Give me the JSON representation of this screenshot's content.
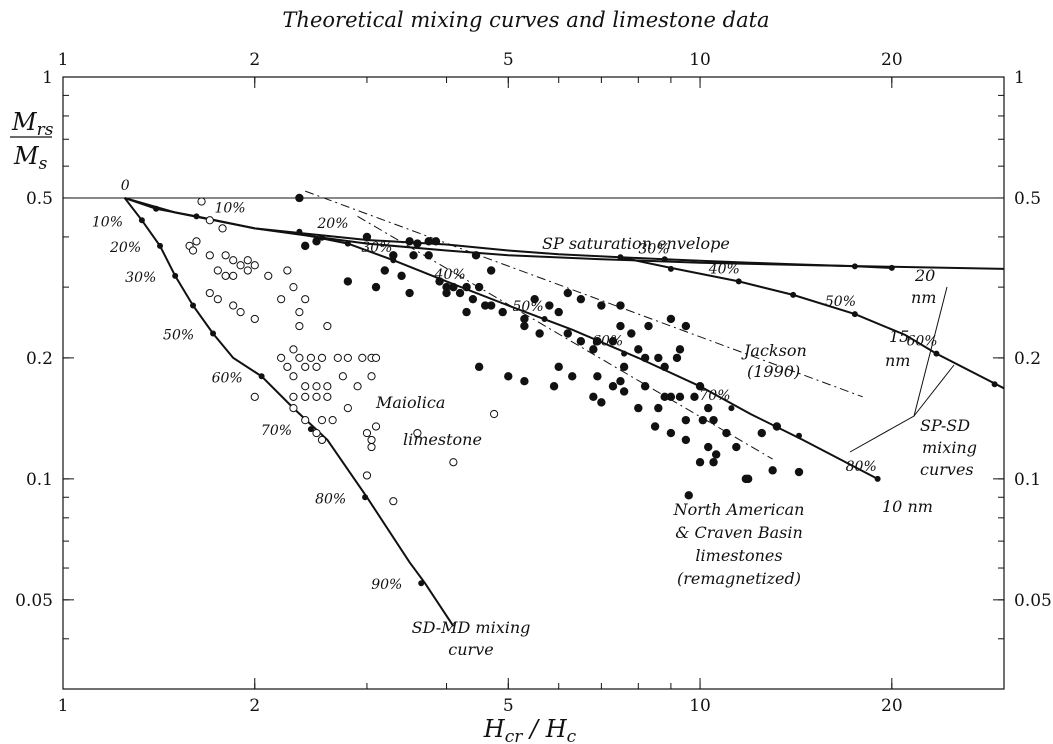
{
  "chart_data": {
    "type": "scatter",
    "title": "Theoretical mixing curves and limestone data",
    "x_scale": "log",
    "y_scale": "log",
    "xlim": [
      1,
      30
    ],
    "ylim": [
      0.03,
      1
    ],
    "grid": false,
    "x_ticks": [
      {
        "value": 1,
        "label": "1"
      },
      {
        "value": 2,
        "label": "2"
      },
      {
        "value": 5,
        "label": "5"
      },
      {
        "value": 10,
        "label": "10"
      },
      {
        "value": 20,
        "label": "20"
      }
    ],
    "y_ticks": [
      {
        "value": 1,
        "label": "1"
      },
      {
        "value": 0.5,
        "label": "0.5"
      },
      {
        "value": 0.2,
        "label": "0.2"
      },
      {
        "value": 0.1,
        "label": "0.1"
      },
      {
        "value": 0.05,
        "label": "0.05"
      }
    ],
    "xlabel": {
      "main": "H",
      "sub": "cr",
      "sep": " / ",
      "main2": "H",
      "sub2": "c"
    },
    "ylabel": {
      "num_main": "M",
      "num_sub": "rs",
      "den_main": "M",
      "den_sub": "s"
    },
    "reference_lines": [
      {
        "y": 0.5
      }
    ],
    "curves": [
      {
        "id": "sd-md",
        "x": [
          1.25,
          1.33,
          1.42,
          1.5,
          1.6,
          1.72,
          1.85,
          2.05,
          2.3,
          2.6,
          3.0,
          3.5,
          3.7,
          4.1
        ],
        "y": [
          0.5,
          0.44,
          0.38,
          0.32,
          0.27,
          0.23,
          0.2,
          0.18,
          0.15,
          0.125,
          0.09,
          0.062,
          0.055,
          0.043
        ],
        "markers": [
          {
            "x": 1.33,
            "y": 0.44,
            "label": "10%"
          },
          {
            "x": 1.42,
            "y": 0.38,
            "label": "20%"
          },
          {
            "x": 1.5,
            "y": 0.32,
            "label": "30%"
          },
          {
            "x": 1.6,
            "y": 0.27,
            "label": ""
          },
          {
            "x": 1.72,
            "y": 0.23,
            "label": "50%"
          },
          {
            "x": 2.05,
            "y": 0.18,
            "label": "60%"
          },
          {
            "x": 2.45,
            "y": 0.133,
            "label": "70%"
          },
          {
            "x": 2.98,
            "y": 0.09,
            "label": "80%"
          },
          {
            "x": 3.65,
            "y": 0.055,
            "label": "90%"
          }
        ],
        "origin_label": "0"
      },
      {
        "id": "sp-envelope",
        "x": [
          1.25,
          1.5,
          2,
          2.5,
          3,
          4,
          5,
          7,
          10,
          15,
          20,
          30
        ],
        "y": [
          0.5,
          0.46,
          0.42,
          0.4,
          0.385,
          0.37,
          0.36,
          0.352,
          0.345,
          0.34,
          0.337,
          0.333
        ],
        "markers": []
      },
      {
        "id": "sp-sd-20nm",
        "x": [
          1.25,
          1.4,
          1.62,
          2.0,
          2.5,
          3.0,
          4.0,
          5.0,
          6.0,
          7.5,
          8.8,
          10.0,
          12.0,
          14.0,
          17.5,
          20.0
        ],
        "y": [
          0.5,
          0.47,
          0.45,
          0.42,
          0.405,
          0.393,
          0.383,
          0.37,
          0.362,
          0.356,
          0.352,
          0.349,
          0.345,
          0.342,
          0.338,
          0.335
        ],
        "markers": [
          {
            "x": 1.4,
            "y": 0.47,
            "label": ""
          },
          {
            "x": 1.62,
            "y": 0.45,
            "label": "10%"
          },
          {
            "x": 2.35,
            "y": 0.412,
            "label": "20%"
          },
          {
            "x": 7.5,
            "y": 0.356,
            "label": "30%"
          },
          {
            "x": 8.8,
            "y": 0.352,
            "label": ""
          },
          {
            "x": 17.5,
            "y": 0.338,
            "label": ""
          },
          {
            "x": 20.0,
            "y": 0.335,
            "label": ""
          }
        ]
      },
      {
        "id": "sp-sd-15nm",
        "x": [
          7.5,
          9.0,
          11.5,
          14.0,
          17.5,
          21.0,
          23.5,
          30.0
        ],
        "y": [
          0.356,
          0.335,
          0.31,
          0.287,
          0.257,
          0.228,
          0.205,
          0.168
        ],
        "markers": [
          {
            "x": 9.0,
            "y": 0.333,
            "label": ""
          },
          {
            "x": 11.5,
            "y": 0.31,
            "label": "40%"
          },
          {
            "x": 14.0,
            "y": 0.287,
            "label": ""
          },
          {
            "x": 17.5,
            "y": 0.257,
            "label": "50%"
          },
          {
            "x": 23.5,
            "y": 0.205,
            "label": "60%"
          },
          {
            "x": 29.0,
            "y": 0.172,
            "label": ""
          }
        ]
      },
      {
        "id": "sp-sd-10nm",
        "x": [
          2.3,
          2.8,
          3.3,
          4.0,
          5.0,
          6.3,
          8.0,
          10.0,
          12.0,
          14.5,
          19.0
        ],
        "y": [
          0.41,
          0.385,
          0.35,
          0.31,
          0.27,
          0.235,
          0.2,
          0.17,
          0.145,
          0.125,
          0.1
        ],
        "markers": [
          {
            "x": 2.55,
            "y": 0.398,
            "label": ""
          },
          {
            "x": 2.8,
            "y": 0.385,
            "label": ""
          },
          {
            "x": 3.3,
            "y": 0.35,
            "label": "30%"
          },
          {
            "x": 4.3,
            "y": 0.3,
            "label": "40%"
          },
          {
            "x": 5.7,
            "y": 0.25,
            "label": "50%"
          },
          {
            "x": 7.6,
            "y": 0.205,
            "label": "60%"
          },
          {
            "x": 11.2,
            "y": 0.15,
            "label": "70%"
          },
          {
            "x": 14.3,
            "y": 0.128,
            "label": ""
          },
          {
            "x": 19.0,
            "y": 0.1,
            "label": "80%"
          }
        ]
      }
    ],
    "dashdot_lines": [
      {
        "id": "jackson-1",
        "x": [
          2.4,
          18.0
        ],
        "y": [
          0.52,
          0.16
        ]
      },
      {
        "id": "jackson-2",
        "x": [
          2.9,
          13.0
        ],
        "y": [
          0.45,
          0.112
        ]
      }
    ],
    "series": [
      {
        "name": "Maiolica limestone",
        "marker": "open-circle",
        "points": [
          [
            1.65,
            0.49
          ],
          [
            1.7,
            0.44
          ],
          [
            1.78,
            0.42
          ],
          [
            1.62,
            0.39
          ],
          [
            1.58,
            0.38
          ],
          [
            1.6,
            0.37
          ],
          [
            1.7,
            0.36
          ],
          [
            1.8,
            0.36
          ],
          [
            1.85,
            0.35
          ],
          [
            1.9,
            0.34
          ],
          [
            1.95,
            0.35
          ],
          [
            2.0,
            0.34
          ],
          [
            1.75,
            0.33
          ],
          [
            1.8,
            0.32
          ],
          [
            1.85,
            0.32
          ],
          [
            1.95,
            0.33
          ],
          [
            2.1,
            0.32
          ],
          [
            2.25,
            0.33
          ],
          [
            2.3,
            0.3
          ],
          [
            1.7,
            0.29
          ],
          [
            1.75,
            0.28
          ],
          [
            1.85,
            0.27
          ],
          [
            1.9,
            0.26
          ],
          [
            2.0,
            0.25
          ],
          [
            2.2,
            0.28
          ],
          [
            2.35,
            0.26
          ],
          [
            2.4,
            0.28
          ],
          [
            2.35,
            0.24
          ],
          [
            2.6,
            0.24
          ],
          [
            2.2,
            0.2
          ],
          [
            2.25,
            0.19
          ],
          [
            2.3,
            0.21
          ],
          [
            2.35,
            0.2
          ],
          [
            2.4,
            0.19
          ],
          [
            2.45,
            0.2
          ],
          [
            2.5,
            0.19
          ],
          [
            2.55,
            0.2
          ],
          [
            2.7,
            0.2
          ],
          [
            2.8,
            0.2
          ],
          [
            2.95,
            0.2
          ],
          [
            3.05,
            0.2
          ],
          [
            3.1,
            0.2
          ],
          [
            2.3,
            0.18
          ],
          [
            2.4,
            0.17
          ],
          [
            2.5,
            0.17
          ],
          [
            2.6,
            0.17
          ],
          [
            2.75,
            0.18
          ],
          [
            2.9,
            0.17
          ],
          [
            3.05,
            0.18
          ],
          [
            2.3,
            0.16
          ],
          [
            2.4,
            0.16
          ],
          [
            2.5,
            0.16
          ],
          [
            2.6,
            0.16
          ],
          [
            2.8,
            0.15
          ],
          [
            2.3,
            0.15
          ],
          [
            2.4,
            0.14
          ],
          [
            2.55,
            0.14
          ],
          [
            2.65,
            0.14
          ],
          [
            2.5,
            0.13
          ],
          [
            2.55,
            0.125
          ],
          [
            3.0,
            0.13
          ],
          [
            3.05,
            0.125
          ],
          [
            3.1,
            0.135
          ],
          [
            3.05,
            0.12
          ],
          [
            3.6,
            0.13
          ],
          [
            3.0,
            0.102
          ],
          [
            3.3,
            0.088
          ],
          [
            4.1,
            0.11
          ],
          [
            4.75,
            0.145
          ],
          [
            2.0,
            0.16
          ]
        ]
      },
      {
        "name": "North American & Craven Basin limestones (remagnetized)",
        "marker": "filled-circle",
        "points": [
          [
            2.35,
            0.5
          ],
          [
            2.4,
            0.38
          ],
          [
            2.5,
            0.39
          ],
          [
            3.0,
            0.4
          ],
          [
            3.5,
            0.39
          ],
          [
            3.6,
            0.385
          ],
          [
            3.75,
            0.39
          ],
          [
            3.85,
            0.39
          ],
          [
            3.3,
            0.36
          ],
          [
            3.55,
            0.36
          ],
          [
            3.75,
            0.36
          ],
          [
            4.45,
            0.36
          ],
          [
            4.7,
            0.33
          ],
          [
            3.2,
            0.33
          ],
          [
            3.4,
            0.32
          ],
          [
            3.9,
            0.31
          ],
          [
            4.0,
            0.3
          ],
          [
            4.1,
            0.3
          ],
          [
            4.3,
            0.3
          ],
          [
            4.5,
            0.3
          ],
          [
            2.8,
            0.31
          ],
          [
            3.1,
            0.3
          ],
          [
            3.5,
            0.29
          ],
          [
            4.0,
            0.29
          ],
          [
            4.2,
            0.29
          ],
          [
            4.4,
            0.28
          ],
          [
            4.7,
            0.27
          ],
          [
            4.3,
            0.26
          ],
          [
            4.6,
            0.27
          ],
          [
            4.9,
            0.26
          ],
          [
            5.3,
            0.25
          ],
          [
            5.5,
            0.28
          ],
          [
            5.8,
            0.27
          ],
          [
            6.0,
            0.26
          ],
          [
            6.2,
            0.29
          ],
          [
            6.5,
            0.28
          ],
          [
            7.0,
            0.27
          ],
          [
            7.5,
            0.27
          ],
          [
            5.3,
            0.24
          ],
          [
            5.6,
            0.23
          ],
          [
            6.2,
            0.23
          ],
          [
            6.5,
            0.22
          ],
          [
            6.8,
            0.21
          ],
          [
            7.5,
            0.24
          ],
          [
            7.8,
            0.23
          ],
          [
            8.3,
            0.24
          ],
          [
            9.0,
            0.25
          ],
          [
            9.5,
            0.24
          ],
          [
            6.9,
            0.22
          ],
          [
            7.3,
            0.22
          ],
          [
            8.0,
            0.21
          ],
          [
            8.6,
            0.2
          ],
          [
            9.2,
            0.2
          ],
          [
            7.6,
            0.19
          ],
          [
            8.2,
            0.2
          ],
          [
            8.8,
            0.19
          ],
          [
            9.3,
            0.21
          ],
          [
            4.5,
            0.19
          ],
          [
            5.0,
            0.18
          ],
          [
            6.0,
            0.19
          ],
          [
            6.3,
            0.18
          ],
          [
            6.9,
            0.18
          ],
          [
            7.3,
            0.17
          ],
          [
            7.5,
            0.175
          ],
          [
            8.2,
            0.17
          ],
          [
            8.8,
            0.16
          ],
          [
            9.3,
            0.16
          ],
          [
            10.0,
            0.17
          ],
          [
            5.3,
            0.175
          ],
          [
            5.9,
            0.17
          ],
          [
            6.8,
            0.16
          ],
          [
            7.6,
            0.165
          ],
          [
            8.0,
            0.15
          ],
          [
            8.6,
            0.15
          ],
          [
            9.0,
            0.16
          ],
          [
            9.8,
            0.16
          ],
          [
            10.3,
            0.15
          ],
          [
            7.0,
            0.155
          ],
          [
            9.5,
            0.14
          ],
          [
            10.1,
            0.14
          ],
          [
            10.5,
            0.14
          ],
          [
            11.0,
            0.13
          ],
          [
            11.4,
            0.12
          ],
          [
            8.5,
            0.135
          ],
          [
            9.0,
            0.13
          ],
          [
            9.5,
            0.125
          ],
          [
            10.3,
            0.12
          ],
          [
            10.6,
            0.115
          ],
          [
            10.0,
            0.11
          ],
          [
            10.5,
            0.11
          ],
          [
            11.8,
            0.1
          ],
          [
            13.0,
            0.105
          ],
          [
            14.3,
            0.104
          ],
          [
            12.5,
            0.13
          ],
          [
            13.2,
            0.135
          ],
          [
            9.6,
            0.091
          ],
          [
            11.9,
            0.1
          ]
        ]
      }
    ],
    "annotations": {
      "sp_envelope": "SP saturation envelope",
      "nm20": "20",
      "nm20_unit": "nm",
      "nm15": "15",
      "nm15_unit": "nm",
      "nm10": "10 nm",
      "jackson_line1": "Jackson",
      "jackson_line2": "(1990)",
      "spsd_line1": "SP-SD",
      "spsd_line2": "mixing",
      "spsd_line3": "curves",
      "maiolica_line1": "Maiolica",
      "maiolica_line2": "limestone",
      "na_line1": "North American",
      "na_line2": "& Craven Basin",
      "na_line3": "limestones",
      "na_line4": "(remagnetized)",
      "sdmd_line1": "SD-MD mixing",
      "sdmd_line2": "curve"
    }
  }
}
